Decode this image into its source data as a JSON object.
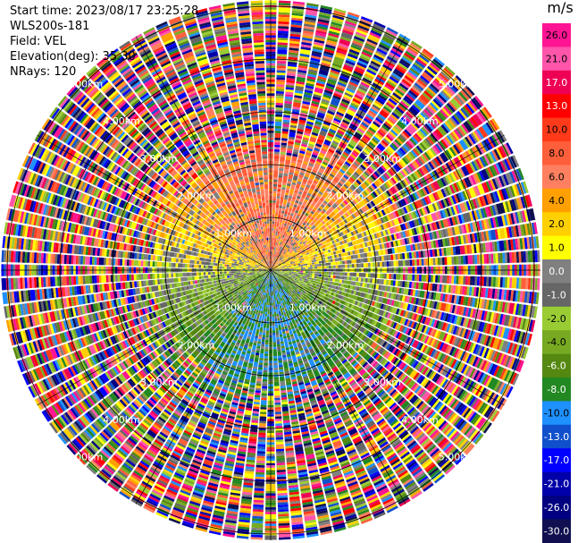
{
  "info": {
    "start_time": "Start time: 2023/08/17 23:25:28",
    "instrument": "WLS200s-181",
    "field": "Field: VEL",
    "elevation": "Elevation(deg): 35.30",
    "nrays": "NRays: 120"
  },
  "chart_data": {
    "type": "heatmap",
    "projection": "polar (PPI scan)",
    "field": "VEL",
    "nrays": 120,
    "range_ring_labels": [
      "1.00km",
      "2.00km",
      "3.00km",
      "4.00km",
      "5.00km"
    ],
    "ring_label_bearings_deg": [
      135,
      225,
      315,
      45
    ],
    "colorbar": {
      "unit": "m/s",
      "tick_labels": [
        "26.0",
        "21.0",
        "17.0",
        "13.0",
        "10.0",
        "8.0",
        "6.0",
        "4.0",
        "2.0",
        "1.0",
        "0.0",
        "-1.0",
        "-2.0",
        "-4.0",
        "-6.0",
        "-8.0",
        "-10.0",
        "-13.0",
        "-17.0",
        "-21.0",
        "-26.0",
        "-30.0"
      ],
      "colors": [
        "#ff1493",
        "#ff55aa",
        "#ee0055",
        "#ff0000",
        "#ff3a1a",
        "#ff5e3a",
        "#ff8060",
        "#ffa000",
        "#ffd000",
        "#ffff00",
        "#808080",
        "#666666",
        "#99cc33",
        "#77aa22",
        "#558811",
        "#228822",
        "#1e90ff",
        "#1050cc",
        "#0000ff",
        "#0000aa",
        "#000080",
        "#101050"
      ]
    },
    "approx_pattern": {
      "north_sector": "positive velocities 4-13 m/s (orange/red), yellow edges",
      "south_sector": "negative velocities -2 to -8 m/s (olive/green)",
      "east_west": "near zero (grey) transition",
      "beyond_2.3km": "noisy random values across full colour range"
    }
  }
}
